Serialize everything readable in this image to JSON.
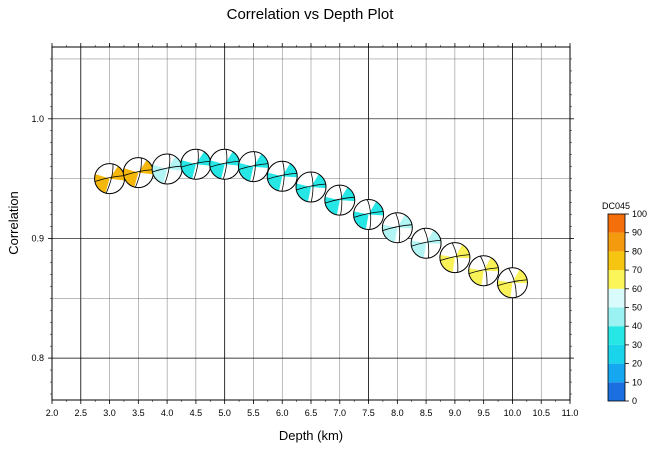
{
  "chart_data": {
    "type": "scatter",
    "title": "Correlation vs Depth Plot",
    "xlabel": "Depth (km)",
    "ylabel": "Correlation",
    "xlim": [
      2.0,
      11.0
    ],
    "ylim": [
      0.765,
      1.06
    ],
    "xticks": [
      "2.0",
      "2.5",
      "3.0",
      "3.5",
      "4.0",
      "4.5",
      "5.0",
      "5.5",
      "6.0",
      "6.5",
      "7.0",
      "7.5",
      "8.0",
      "8.5",
      "9.0",
      "9.5",
      "10.0",
      "10.5",
      "11.0"
    ],
    "yticks": [
      "0.8",
      "0.9",
      "1.0"
    ],
    "grid": true,
    "colorbar": {
      "label": "DC045",
      "ticks": [
        "0",
        "10",
        "20",
        "30",
        "40",
        "50",
        "60",
        "70",
        "80",
        "90",
        "100"
      ],
      "colors": [
        "#1b6fe0",
        "#15a8f0",
        "#1ad4ec",
        "#27e6e6",
        "#9af2f2",
        "#d9fbfb",
        "#fbf55a",
        "#f5c511",
        "#f49a0f",
        "#f46f0a",
        "#ee1111"
      ]
    },
    "points": [
      {
        "depth": 3.0,
        "correlation": 0.95,
        "dc": 65,
        "color": "#f5b80a"
      },
      {
        "depth": 3.5,
        "correlation": 0.955,
        "dc": 65,
        "color": "#f5b80a"
      },
      {
        "depth": 4.0,
        "correlation": 0.958,
        "dc": 45,
        "color": "#b3f5f5"
      },
      {
        "depth": 4.5,
        "correlation": 0.962,
        "dc": 35,
        "color": "#27e6e6"
      },
      {
        "depth": 5.0,
        "correlation": 0.962,
        "dc": 35,
        "color": "#27e6e6"
      },
      {
        "depth": 5.5,
        "correlation": 0.96,
        "dc": 35,
        "color": "#27e6e6"
      },
      {
        "depth": 6.0,
        "correlation": 0.952,
        "dc": 35,
        "color": "#27e6e6"
      },
      {
        "depth": 6.5,
        "correlation": 0.943,
        "dc": 35,
        "color": "#27e6e6"
      },
      {
        "depth": 7.0,
        "correlation": 0.932,
        "dc": 35,
        "color": "#27e6e6"
      },
      {
        "depth": 7.5,
        "correlation": 0.92,
        "dc": 35,
        "color": "#27e6e6"
      },
      {
        "depth": 8.0,
        "correlation": 0.909,
        "dc": 45,
        "color": "#b3f5f5"
      },
      {
        "depth": 8.5,
        "correlation": 0.896,
        "dc": 45,
        "color": "#b3f5f5"
      },
      {
        "depth": 9.0,
        "correlation": 0.884,
        "dc": 55,
        "color": "#f8f258"
      },
      {
        "depth": 9.5,
        "correlation": 0.873,
        "dc": 55,
        "color": "#f8f258"
      },
      {
        "depth": 10.0,
        "correlation": 0.863,
        "dc": 55,
        "color": "#f8f258"
      }
    ]
  }
}
